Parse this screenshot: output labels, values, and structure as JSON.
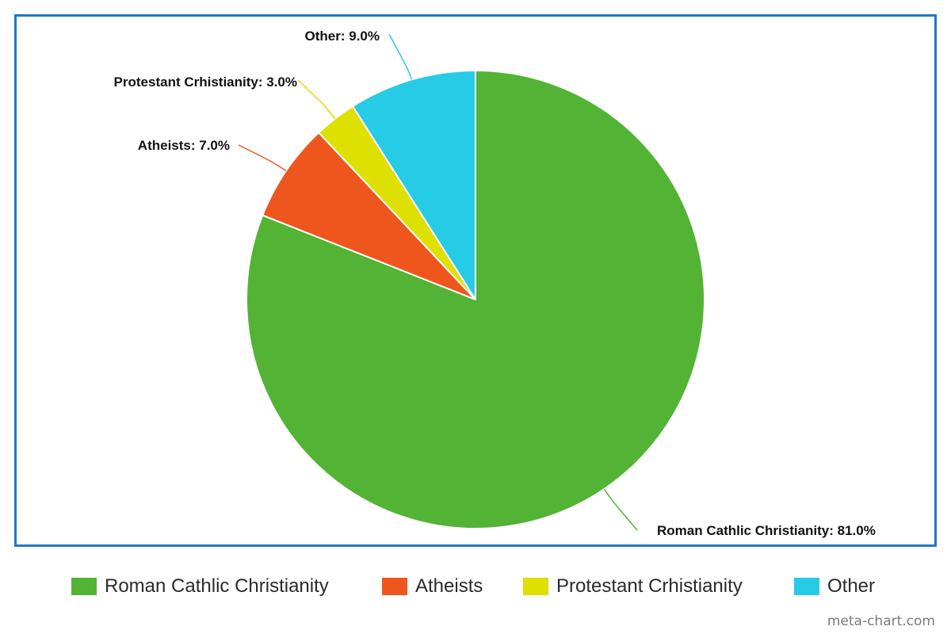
{
  "chart_data": {
    "type": "pie",
    "slices": [
      {
        "label": "Roman Cathlic Christianity",
        "value": 81.0,
        "color": "#52b335",
        "data_label": "Roman Cathlic Christianity: 81.0%"
      },
      {
        "label": "Atheists",
        "value": 7.0,
        "color": "#ee561e",
        "data_label": "Atheists: 7.0%"
      },
      {
        "label": "Protestant Crhistianity",
        "value": 3.0,
        "color": "#dde000",
        "data_label": "Protestant Crhistianity: 3.0%"
      },
      {
        "label": "Other",
        "value": 9.0,
        "color": "#26cbe6",
        "data_label": "Other: 9.0%"
      }
    ],
    "legend_placement": "bottom",
    "border_color": "#1f78c1"
  },
  "legend": {
    "items": [
      {
        "label": "Roman Cathlic Christianity",
        "color": "#52b335"
      },
      {
        "label": "Atheists",
        "color": "#ee561e"
      },
      {
        "label": "Protestant Crhistianity",
        "color": "#dde000"
      },
      {
        "label": "Other",
        "color": "#26cbe6"
      }
    ]
  },
  "footer": {
    "credit": "meta-chart.com"
  }
}
